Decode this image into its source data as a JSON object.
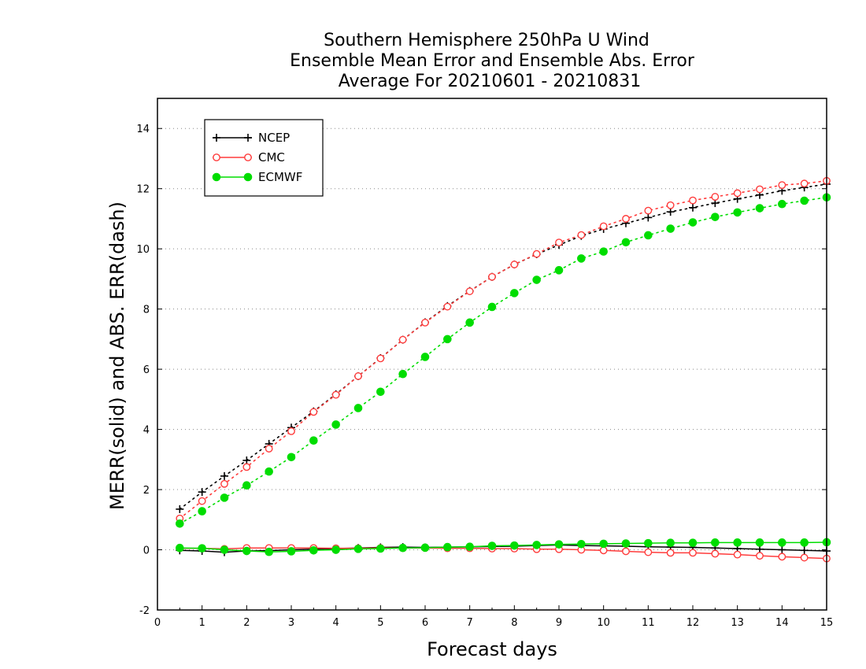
{
  "chart_data": {
    "type": "line",
    "title_lines": [
      "Southern Hemisphere 250hPa U Wind",
      "Ensemble Mean Error and Ensemble Abs. Error",
      "Average For 20210601 - 20210831"
    ],
    "xlabel": "Forecast days",
    "ylabel": "MERR(solid) and ABS. ERR(dash)",
    "xlim": [
      0,
      15
    ],
    "ylim": [
      -2,
      15
    ],
    "xticks": [
      "0",
      "1",
      "2",
      "3",
      "4",
      "5",
      "6",
      "7",
      "8",
      "9",
      "10",
      "11",
      "12",
      "13",
      "14",
      "15"
    ],
    "yticks": [
      "-2",
      "0",
      "2",
      "4",
      "6",
      "8",
      "10",
      "12",
      "14"
    ],
    "ytick_values": [
      -2,
      0,
      2,
      4,
      6,
      8,
      10,
      12,
      14
    ],
    "grid": "horizontal dotted",
    "legend_position": "top-left",
    "x": [
      0.5,
      1,
      1.5,
      2,
      2.5,
      3,
      3.5,
      4,
      4.5,
      5,
      5.5,
      6,
      6.5,
      7,
      7.5,
      8,
      8.5,
      9,
      9.5,
      10,
      10.5,
      11,
      11.5,
      12,
      12.5,
      13,
      13.5,
      14,
      14.5,
      15
    ],
    "series": [
      {
        "name": "NCEP",
        "color": "#000000",
        "marker": "plus",
        "abs_err": [
          1.35,
          1.92,
          2.45,
          2.97,
          3.52,
          4.06,
          4.6,
          5.17,
          5.77,
          6.37,
          6.98,
          7.56,
          8.1,
          8.6,
          9.07,
          9.48,
          9.82,
          10.13,
          10.43,
          10.66,
          10.85,
          11.04,
          11.23,
          11.37,
          11.52,
          11.66,
          11.79,
          11.93,
          12.04,
          12.15
        ],
        "mean_err": [
          -0.02,
          -0.04,
          -0.08,
          -0.04,
          -0.03,
          0.0,
          0.02,
          0.04,
          0.06,
          0.08,
          0.09,
          0.08,
          0.09,
          0.1,
          0.11,
          0.12,
          0.14,
          0.16,
          0.14,
          0.13,
          0.12,
          0.1,
          0.09,
          0.08,
          0.06,
          0.04,
          0.02,
          0.0,
          -0.02,
          -0.04
        ]
      },
      {
        "name": "CMC",
        "color": "#ff3b3b",
        "marker": "open-circle",
        "abs_err": [
          1.04,
          1.62,
          2.19,
          2.75,
          3.36,
          3.94,
          4.58,
          5.15,
          5.77,
          6.36,
          6.98,
          7.55,
          8.08,
          8.59,
          9.07,
          9.48,
          9.83,
          10.21,
          10.46,
          10.75,
          11.0,
          11.27,
          11.45,
          11.61,
          11.73,
          11.85,
          11.98,
          12.12,
          12.17,
          12.26
        ],
        "mean_err": [
          0.05,
          0.05,
          0.03,
          0.06,
          0.06,
          0.06,
          0.06,
          0.05,
          0.05,
          0.06,
          0.06,
          0.06,
          0.05,
          0.05,
          0.04,
          0.04,
          0.02,
          0.02,
          0.0,
          -0.02,
          -0.05,
          -0.08,
          -0.1,
          -0.1,
          -0.13,
          -0.16,
          -0.2,
          -0.23,
          -0.26,
          -0.29
        ]
      },
      {
        "name": "ECMWF",
        "color": "#00dd00",
        "marker": "filled-circle",
        "abs_err": [
          0.87,
          1.28,
          1.73,
          2.14,
          2.6,
          3.08,
          3.63,
          4.16,
          4.71,
          5.25,
          5.84,
          6.41,
          7.0,
          7.55,
          8.07,
          8.53,
          8.97,
          9.29,
          9.68,
          9.91,
          10.22,
          10.45,
          10.67,
          10.88,
          11.06,
          11.21,
          11.35,
          11.49,
          11.6,
          11.71
        ],
        "mean_err": [
          0.06,
          0.05,
          0.0,
          -0.04,
          -0.07,
          -0.05,
          -0.02,
          0.0,
          0.03,
          0.04,
          0.06,
          0.07,
          0.09,
          0.1,
          0.13,
          0.14,
          0.16,
          0.18,
          0.19,
          0.2,
          0.21,
          0.22,
          0.23,
          0.23,
          0.24,
          0.24,
          0.24,
          0.24,
          0.24,
          0.25
        ]
      }
    ]
  }
}
